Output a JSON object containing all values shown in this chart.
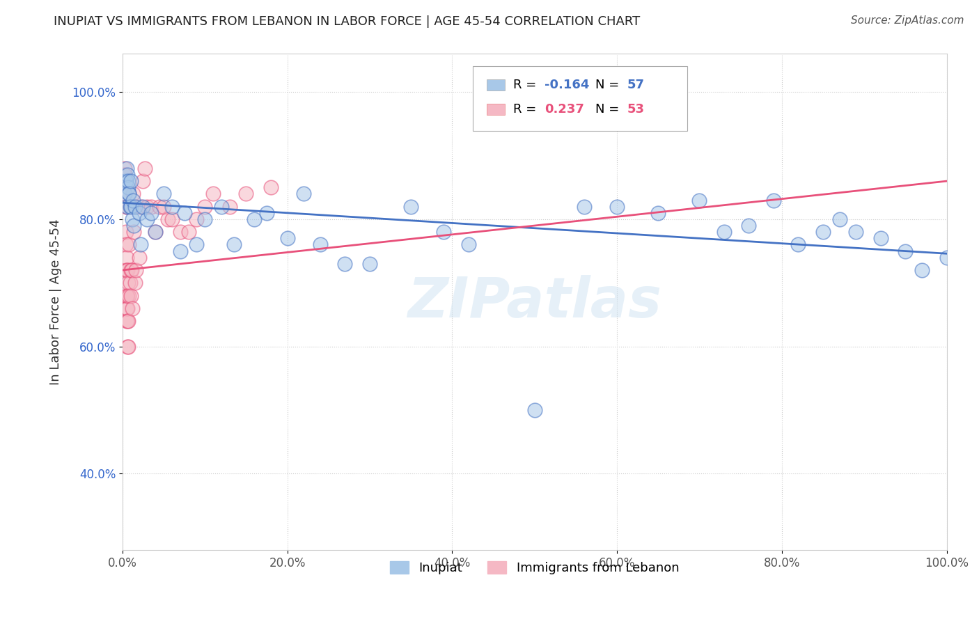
{
  "title": "INUPIAT VS IMMIGRANTS FROM LEBANON IN LABOR FORCE | AGE 45-54 CORRELATION CHART",
  "source": "Source: ZipAtlas.com",
  "ylabel": "In Labor Force | Age 45-54",
  "xlim": [
    0.0,
    1.0
  ],
  "ylim": [
    0.28,
    1.06
  ],
  "xticks": [
    0.0,
    0.2,
    0.4,
    0.6,
    0.8,
    1.0
  ],
  "xticklabels": [
    "0.0%",
    "20.0%",
    "40.0%",
    "60.0%",
    "80.0%",
    "100.0%"
  ],
  "yticks": [
    0.4,
    0.6,
    0.8,
    1.0
  ],
  "yticklabels": [
    "40.0%",
    "60.0%",
    "80.0%",
    "100.0%"
  ],
  "watermark": "ZIPatlas",
  "legend_labels": [
    "Inupiat",
    "Immigrants from Lebanon"
  ],
  "inupiat_R": "-0.164",
  "inupiat_N": "57",
  "lebanon_R": "0.237",
  "lebanon_N": "53",
  "blue_color": "#a8c8e8",
  "pink_color": "#f5b8c4",
  "blue_line_color": "#4472c4",
  "pink_line_color": "#e8507a",
  "inupiat_x": [
    0.003,
    0.004,
    0.004,
    0.005,
    0.006,
    0.006,
    0.007,
    0.007,
    0.008,
    0.008,
    0.009,
    0.01,
    0.01,
    0.012,
    0.013,
    0.014,
    0.015,
    0.02,
    0.022,
    0.025,
    0.03,
    0.035,
    0.04,
    0.05,
    0.06,
    0.07,
    0.075,
    0.09,
    0.1,
    0.12,
    0.135,
    0.16,
    0.175,
    0.2,
    0.22,
    0.24,
    0.27,
    0.3,
    0.35,
    0.39,
    0.42,
    0.5,
    0.56,
    0.6,
    0.65,
    0.7,
    0.73,
    0.76,
    0.79,
    0.82,
    0.85,
    0.87,
    0.89,
    0.92,
    0.95,
    0.97,
    1.0
  ],
  "inupiat_y": [
    0.84,
    0.86,
    0.86,
    0.88,
    0.82,
    0.87,
    0.85,
    0.86,
    0.84,
    0.84,
    0.82,
    0.82,
    0.86,
    0.8,
    0.83,
    0.79,
    0.82,
    0.81,
    0.76,
    0.82,
    0.8,
    0.81,
    0.78,
    0.84,
    0.82,
    0.75,
    0.81,
    0.76,
    0.8,
    0.82,
    0.76,
    0.8,
    0.81,
    0.77,
    0.84,
    0.76,
    0.73,
    0.73,
    0.82,
    0.78,
    0.76,
    0.5,
    0.82,
    0.82,
    0.81,
    0.83,
    0.78,
    0.79,
    0.83,
    0.76,
    0.78,
    0.8,
    0.78,
    0.77,
    0.75,
    0.72,
    0.74
  ],
  "lebanon_x": [
    0.003,
    0.003,
    0.003,
    0.004,
    0.004,
    0.004,
    0.005,
    0.005,
    0.005,
    0.005,
    0.005,
    0.005,
    0.005,
    0.005,
    0.006,
    0.006,
    0.006,
    0.006,
    0.006,
    0.007,
    0.007,
    0.007,
    0.008,
    0.008,
    0.009,
    0.01,
    0.01,
    0.01,
    0.011,
    0.012,
    0.013,
    0.014,
    0.015,
    0.016,
    0.02,
    0.022,
    0.025,
    0.027,
    0.03,
    0.035,
    0.04,
    0.045,
    0.05,
    0.055,
    0.06,
    0.07,
    0.08,
    0.09,
    0.1,
    0.11,
    0.13,
    0.15,
    0.18
  ],
  "lebanon_y": [
    0.88,
    0.84,
    0.87,
    0.78,
    0.72,
    0.76,
    0.82,
    0.82,
    0.64,
    0.74,
    0.68,
    0.66,
    0.72,
    0.68,
    0.72,
    0.68,
    0.66,
    0.64,
    0.6,
    0.7,
    0.64,
    0.6,
    0.76,
    0.68,
    0.7,
    0.72,
    0.68,
    0.82,
    0.72,
    0.66,
    0.84,
    0.78,
    0.7,
    0.72,
    0.74,
    0.82,
    0.86,
    0.88,
    0.82,
    0.82,
    0.78,
    0.82,
    0.82,
    0.8,
    0.8,
    0.78,
    0.78,
    0.8,
    0.82,
    0.84,
    0.82,
    0.84,
    0.85
  ],
  "blue_line_y0": 0.826,
  "blue_line_y1": 0.746,
  "pink_line_y0": 0.72,
  "pink_line_y1": 0.86
}
